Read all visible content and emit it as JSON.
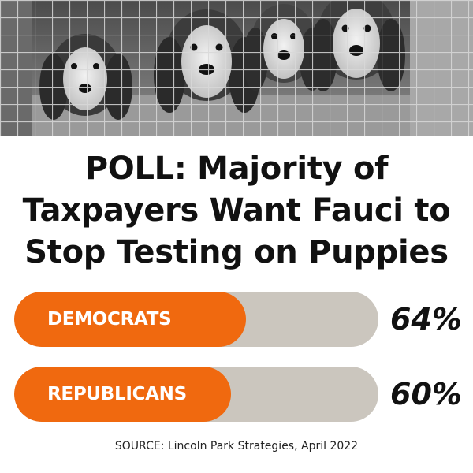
{
  "headline": {
    "line1": "POLL: Majority of",
    "line2": "Taxpayers Want Fauci to",
    "line3": "Stop Testing on Puppies"
  },
  "chart_data": {
    "type": "bar",
    "categories": [
      "DEMOCRATS",
      "REPUBLICANS"
    ],
    "values": [
      64,
      60
    ],
    "value_labels": [
      "64%",
      "60%"
    ],
    "ylim": [
      0,
      100
    ]
  },
  "colors": {
    "bar_fill": "#f0690f",
    "bar_track": "#cbc6be",
    "text": "#111111"
  },
  "source": "SOURCE: Lincoln Park Strategies, April 2022"
}
